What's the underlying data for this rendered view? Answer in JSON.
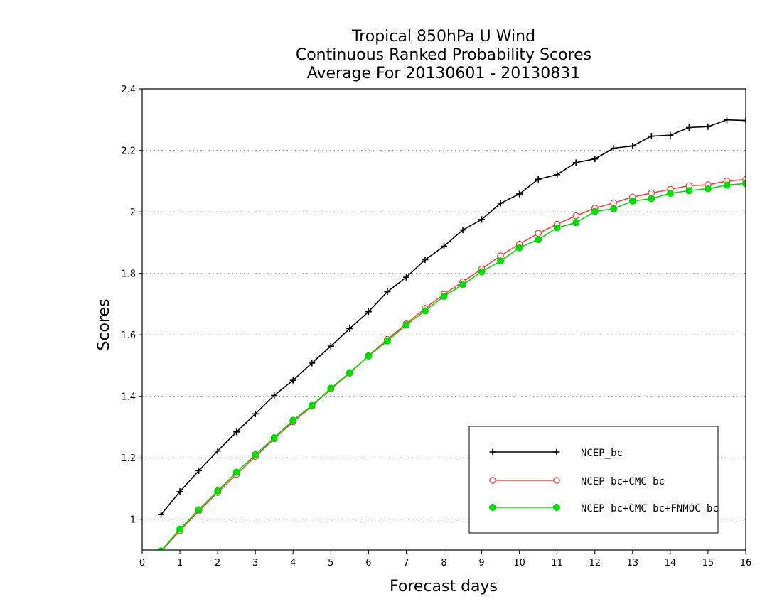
{
  "chart_data": {
    "type": "line",
    "title": [
      "Tropical 850hPa U Wind",
      "Continuous Ranked Probability Scores",
      "Average For 20130601 - 20130831"
    ],
    "xlabel": "Forecast days",
    "ylabel": "Scores",
    "xlim": [
      0,
      16
    ],
    "ylim": [
      0.9,
      2.4
    ],
    "xticks": [
      0,
      1,
      2,
      3,
      4,
      5,
      6,
      7,
      8,
      9,
      10,
      11,
      12,
      13,
      14,
      15,
      16
    ],
    "yticks": [
      1,
      1.2,
      1.4,
      1.6,
      1.8,
      2,
      2.2,
      2.4
    ],
    "ytick_labels": [
      "1",
      "1.2",
      "1.4",
      "1.6",
      "1.8",
      "2",
      "2.2",
      "2.4"
    ],
    "grid": "horizontal dotted",
    "legend_position": "bottom-right",
    "x": [
      0.5,
      1,
      1.5,
      2,
      2.5,
      3,
      3.5,
      4,
      4.5,
      5,
      5.5,
      6,
      6.5,
      7,
      7.5,
      8,
      8.5,
      9,
      9.5,
      10,
      10.5,
      11,
      11.5,
      12,
      12.5,
      13,
      13.5,
      14,
      14.5,
      15,
      15.5,
      16
    ],
    "series": [
      {
        "name": "NCEP_bc",
        "color": "#000000",
        "marker": "plus",
        "values": [
          1.015,
          1.09,
          1.158,
          1.222,
          1.284,
          1.343,
          1.403,
          1.452,
          1.508,
          1.563,
          1.62,
          1.675,
          1.74,
          1.787,
          1.844,
          1.888,
          1.941,
          1.975,
          2.028,
          2.058,
          2.106,
          2.121,
          2.16,
          2.172,
          2.207,
          2.214,
          2.246,
          2.249,
          2.274,
          2.277,
          2.299,
          2.297
        ]
      },
      {
        "name": "NCEP_bc+CMC_bc",
        "color": "#ff4040",
        "marker": "open-circle",
        "values": [
          0.895,
          0.963,
          1.027,
          1.087,
          1.146,
          1.204,
          1.262,
          1.317,
          1.368,
          1.423,
          1.475,
          1.532,
          1.585,
          1.636,
          1.686,
          1.732,
          1.772,
          1.814,
          1.857,
          1.895,
          1.93,
          1.96,
          1.987,
          2.012,
          2.029,
          2.048,
          2.061,
          2.073,
          2.085,
          2.088,
          2.1,
          2.105
        ]
      },
      {
        "name": "NCEP_bc+CMC_bc+FNMOC_bc",
        "color": "#00dd00",
        "marker": "filled-circle",
        "values": [
          0.897,
          0.968,
          1.031,
          1.092,
          1.153,
          1.21,
          1.265,
          1.322,
          1.37,
          1.426,
          1.477,
          1.531,
          1.58,
          1.632,
          1.678,
          1.725,
          1.763,
          1.805,
          1.84,
          1.883,
          1.91,
          1.948,
          1.965,
          2.001,
          2.01,
          2.035,
          2.043,
          2.06,
          2.069,
          2.075,
          2.087,
          2.092
        ]
      }
    ]
  }
}
